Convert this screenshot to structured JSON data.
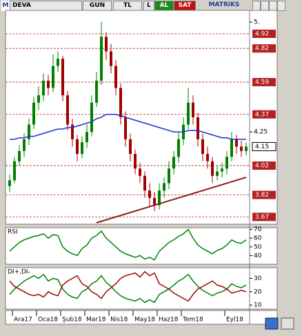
{
  "header": {
    "logo": "M",
    "symbol": "DEVA",
    "period": "GUN",
    "currency": "TL",
    "tab": "L",
    "buy": "AL",
    "sell": "SAT",
    "brand": "MATRiKS"
  },
  "chart_data": [
    {
      "type": "candlestick",
      "categories": [
        null,
        "Ara17",
        null,
        null,
        null,
        null,
        "Oca18",
        null,
        null,
        null,
        null,
        "Şub18",
        null,
        null,
        null,
        null,
        "Mar18",
        null,
        null,
        null,
        null,
        "Nis18",
        null,
        null,
        null,
        null,
        "May18",
        null,
        null,
        null,
        null,
        "Haz18",
        null,
        null,
        null,
        null,
        "Tem18",
        null,
        null,
        null,
        null,
        null,
        null,
        null,
        null,
        "Eyl18",
        null,
        null,
        null,
        null
      ],
      "candles": [
        [
          3.88,
          3.96,
          3.84,
          3.92
        ],
        [
          3.92,
          4.08,
          3.9,
          4.05
        ],
        [
          4.05,
          4.16,
          4.02,
          4.12
        ],
        [
          4.12,
          4.24,
          4.08,
          4.2
        ],
        [
          4.2,
          4.34,
          4.16,
          4.3
        ],
        [
          4.3,
          4.49,
          4.27,
          4.45
        ],
        [
          4.45,
          4.56,
          4.4,
          4.5
        ],
        [
          4.5,
          4.65,
          4.46,
          4.6
        ],
        [
          4.6,
          4.64,
          4.5,
          4.55
        ],
        [
          4.55,
          4.78,
          4.52,
          4.7
        ],
        [
          4.7,
          4.8,
          4.66,
          4.75
        ],
        [
          4.75,
          4.77,
          4.46,
          4.5
        ],
        [
          4.5,
          4.53,
          4.26,
          4.3
        ],
        [
          4.3,
          4.34,
          4.15,
          4.2
        ],
        [
          4.2,
          4.23,
          4.05,
          4.1
        ],
        [
          4.1,
          4.22,
          4.07,
          4.18
        ],
        [
          4.18,
          4.3,
          4.14,
          4.25
        ],
        [
          4.25,
          4.5,
          4.22,
          4.45
        ],
        [
          4.45,
          4.66,
          4.42,
          4.6
        ],
        [
          4.6,
          5.0,
          4.57,
          4.9
        ],
        [
          4.9,
          4.93,
          4.74,
          4.8
        ],
        [
          4.8,
          4.85,
          4.65,
          4.7
        ],
        [
          4.7,
          4.74,
          4.5,
          4.55
        ],
        [
          4.55,
          4.58,
          4.3,
          4.35
        ],
        [
          4.35,
          4.39,
          4.15,
          4.2
        ],
        [
          4.2,
          4.24,
          4.05,
          4.1
        ],
        [
          4.1,
          4.13,
          3.96,
          4.0
        ],
        [
          4.0,
          4.04,
          3.9,
          3.95
        ],
        [
          3.95,
          3.98,
          3.8,
          3.85
        ],
        [
          3.85,
          3.9,
          3.74,
          3.8
        ],
        [
          3.8,
          3.84,
          3.71,
          3.75
        ],
        [
          3.75,
          3.9,
          3.72,
          3.85
        ],
        [
          3.85,
          3.94,
          3.8,
          3.9
        ],
        [
          3.9,
          4.05,
          3.86,
          4.0
        ],
        [
          4.0,
          4.12,
          3.96,
          4.08
        ],
        [
          4.08,
          4.25,
          4.04,
          4.2
        ],
        [
          4.2,
          4.35,
          4.16,
          4.3
        ],
        [
          4.3,
          4.55,
          4.27,
          4.45
        ],
        [
          4.45,
          4.5,
          4.3,
          4.35
        ],
        [
          4.35,
          4.38,
          4.15,
          4.2
        ],
        [
          4.2,
          4.24,
          4.05,
          4.1
        ],
        [
          4.1,
          4.15,
          4.0,
          4.05
        ],
        [
          4.05,
          4.08,
          3.9,
          3.95
        ],
        [
          3.95,
          4.02,
          3.92,
          3.98
        ],
        [
          3.98,
          4.04,
          3.94,
          4.0
        ],
        [
          4.0,
          4.12,
          3.96,
          4.08
        ],
        [
          4.08,
          4.25,
          4.05,
          4.2
        ],
        [
          4.2,
          4.23,
          4.1,
          4.15
        ],
        [
          4.15,
          4.19,
          4.08,
          4.12
        ],
        [
          4.12,
          4.18,
          4.09,
          4.15
        ]
      ],
      "up_color": "#008000",
      "down_color": "#a00000",
      "ylim": [
        3.62,
        5.08
      ],
      "yticks": [
        {
          "value": 5,
          "label": "5."
        },
        4.25
      ],
      "levels": [
        4.92,
        4.82,
        4.59,
        4.37,
        4.02,
        3.82,
        3.67
      ],
      "level_color": "#b22222",
      "ma": {
        "color": "#1f2fd0",
        "values": [
          4.2,
          4.2,
          4.21,
          4.21,
          4.22,
          4.22,
          4.23,
          4.24,
          4.25,
          4.26,
          4.27,
          4.27,
          4.28,
          4.28,
          4.29,
          4.3,
          4.31,
          4.32,
          4.34,
          4.35,
          4.37,
          4.37,
          4.37,
          4.36,
          4.35,
          4.34,
          4.33,
          4.32,
          4.31,
          4.3,
          4.29,
          4.28,
          4.27,
          4.26,
          4.25,
          4.25,
          4.25,
          4.26,
          4.26,
          4.26,
          4.25,
          4.24,
          4.23,
          4.22,
          4.21,
          4.21,
          4.2,
          4.2,
          4.2,
          4.2
        ]
      },
      "trendline": {
        "color": "#8b1a1a",
        "x": [
          18,
          49
        ],
        "values": [
          3.63,
          3.94
        ]
      }
    },
    {
      "type": "line",
      "title": "RSI",
      "ylim": [
        30,
        72
      ],
      "yticks": [
        70,
        60,
        50,
        40
      ],
      "series": [
        {
          "color": "#008000",
          "values": [
            45,
            50,
            55,
            58,
            60,
            62,
            63,
            65,
            60,
            64,
            63,
            50,
            45,
            42,
            40,
            48,
            52,
            60,
            63,
            68,
            60,
            55,
            50,
            45,
            42,
            40,
            38,
            40,
            36,
            38,
            35,
            45,
            50,
            55,
            58,
            62,
            65,
            70,
            60,
            52,
            48,
            45,
            42,
            46,
            48,
            52,
            58,
            55,
            54,
            58
          ]
        }
      ]
    },
    {
      "type": "line",
      "title": "DI+,DI-",
      "ylim": [
        7,
        38
      ],
      "yticks": [
        30,
        20,
        10
      ],
      "series": [
        {
          "color": "#008000",
          "values": [
            18,
            22,
            25,
            28,
            30,
            32,
            30,
            33,
            28,
            30,
            29,
            22,
            18,
            16,
            15,
            20,
            22,
            26,
            28,
            32,
            27,
            24,
            20,
            17,
            15,
            14,
            13,
            15,
            12,
            14,
            12,
            18,
            20,
            22,
            25,
            28,
            30,
            33,
            28,
            24,
            21,
            19,
            17,
            19,
            20,
            22,
            26,
            24,
            23,
            25
          ]
        },
        {
          "color": "#a00000",
          "values": [
            28,
            24,
            22,
            20,
            18,
            17,
            18,
            16,
            20,
            18,
            17,
            25,
            28,
            30,
            32,
            26,
            24,
            20,
            18,
            15,
            20,
            23,
            26,
            30,
            32,
            33,
            34,
            31,
            35,
            32,
            34,
            26,
            24,
            22,
            19,
            17,
            15,
            13,
            18,
            22,
            24,
            26,
            28,
            25,
            24,
            22,
            19,
            20,
            21,
            20
          ]
        }
      ]
    }
  ]
}
